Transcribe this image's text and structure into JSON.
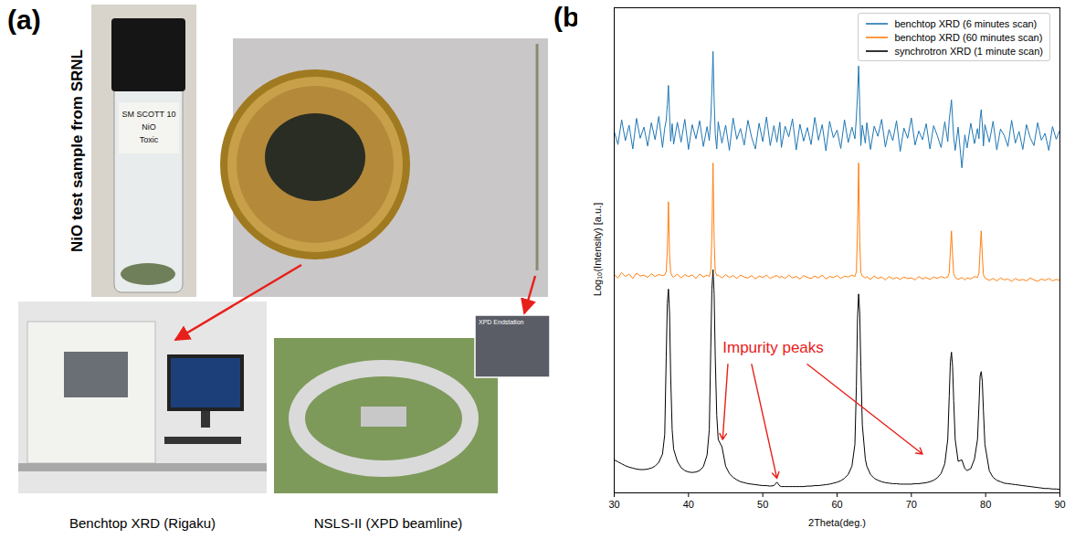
{
  "figure": {
    "panel_a": {
      "label": "(a)",
      "side_title": "NiO test sample from SRNL",
      "vial_label": [
        "SM SCOTT 10",
        "NiO",
        "Toxic"
      ],
      "photos": [
        {
          "caption": "Benchtop XRD (Rigaku)"
        },
        {
          "caption": "NSLS-II (XPD beamline)",
          "inset": "XPD Endstation"
        }
      ]
    }
  },
  "chart_data": {
    "type": "line",
    "panel_label": "(b)",
    "x_label": "2Theta(deg.)",
    "y_label": "Log₁₀(Intensity) [a.u.]",
    "xlim": [
      30,
      90
    ],
    "xticks": [
      30,
      40,
      50,
      60,
      70,
      80,
      90
    ],
    "ylim": [
      0,
      100
    ],
    "yticks": [],
    "tick_labels": "x",
    "grid": false,
    "legend": "upper right",
    "x": [
      30,
      30.5,
      31,
      31.5,
      32,
      32.5,
      33,
      33.5,
      34,
      34.5,
      35,
      35.5,
      36,
      36.5,
      36.8,
      37.0,
      37.15,
      37.3,
      37.45,
      37.6,
      37.8,
      38,
      38.5,
      39,
      39.5,
      40,
      40.5,
      41,
      41.5,
      42,
      42.5,
      42.8,
      43.0,
      43.15,
      43.3,
      43.45,
      43.6,
      43.8,
      44,
      44.5,
      45,
      45.5,
      46,
      46.5,
      47,
      47.5,
      48,
      48.5,
      49,
      49.5,
      50,
      50.5,
      51,
      51.5,
      51.9,
      52.3,
      52.5,
      53,
      53.5,
      54,
      54.5,
      55,
      55.5,
      56,
      56.5,
      57,
      57.5,
      58,
      58.5,
      59,
      59.5,
      60,
      60.5,
      61,
      61.5,
      62,
      62.4,
      62.6,
      62.75,
      62.9,
      63.05,
      63.2,
      63.4,
      63.8,
      64,
      64.5,
      65,
      65.5,
      66,
      66.5,
      67,
      67.5,
      68,
      68.5,
      69,
      69.5,
      70,
      70.5,
      71,
      71.5,
      72,
      72.5,
      73,
      73.5,
      74,
      74.5,
      74.9,
      75.1,
      75.25,
      75.4,
      75.55,
      75.7,
      75.9,
      76.3,
      76.8,
      77.2,
      77.5,
      78,
      78.5,
      78.9,
      79.1,
      79.25,
      79.4,
      79.55,
      79.7,
      79.9,
      80.5,
      81,
      81.5,
      82,
      82.5,
      83,
      83.5,
      84,
      84.5,
      85,
      85.5,
      86,
      86.5,
      87,
      87.5,
      88,
      88.5,
      89,
      89.5,
      90
    ],
    "series": [
      {
        "name": "benchtop XRD (6 minutes scan)",
        "color": "#1f77b4",
        "values": [
          74.5,
          71.8,
          76.9,
          72.6,
          75.8,
          70.9,
          77.2,
          73.1,
          75.4,
          71.5,
          76.3,
          72.8,
          77.6,
          71.2,
          75.2,
          76.8,
          80,
          84,
          78,
          72.5,
          76.1,
          71.9,
          76.4,
          72.3,
          77.0,
          70.8,
          75.9,
          73.0,
          76.7,
          71.4,
          75.5,
          72.6,
          77.2,
          83,
          91,
          81,
          74.0,
          70.9,
          76.5,
          72.1,
          75.8,
          70.6,
          77.3,
          72.9,
          75.1,
          71.7,
          76.8,
          73.3,
          70.9,
          76.2,
          72.4,
          77.5,
          71.6,
          75.7,
          72.3,
          76.4,
          71.2,
          75.6,
          73.4,
          77.1,
          70.7,
          76.0,
          72.5,
          75.3,
          71.8,
          77.4,
          72.7,
          75.9,
          70.5,
          76.6,
          73.2,
          74.8,
          71.0,
          76.9,
          72.2,
          75.4,
          73.0,
          77.5,
          82,
          88,
          80,
          71.6,
          75.8,
          72.1,
          76.3,
          70.8,
          75.6,
          73.5,
          77.0,
          71.3,
          74.9,
          72.6,
          76.7,
          70.4,
          75.2,
          73.1,
          77.3,
          71.7,
          74.6,
          72.8,
          76.1,
          70.9,
          75.7,
          73.6,
          71.2,
          76.5,
          72.4,
          76.9,
          79,
          81,
          77,
          73.3,
          70.6,
          75.4,
          67.0,
          73.8,
          71.1,
          76.2,
          72.0,
          75.1,
          73.0,
          77,
          79,
          76,
          71.5,
          75.9,
          72.3,
          76.6,
          70.7,
          75.0,
          73.7,
          71.4,
          76.8,
          72.1,
          74.5,
          70.8,
          75.9,
          73.2,
          71.6,
          76.3,
          72.7,
          74.1,
          70.6,
          75.5,
          72.9,
          74.8
        ]
      },
      {
        "name": "benchtop XRD (60 minutes scan)",
        "color": "#ff7f0e",
        "values": [
          45.0,
          44.3,
          45.4,
          44.6,
          45.1,
          44.2,
          45.3,
          44.7,
          44.9,
          44.4,
          45.2,
          44.6,
          45.0,
          44.8,
          44.9,
          45.6,
          50,
          60,
          49,
          45.4,
          44.7,
          44.5,
          45.1,
          44.3,
          45.0,
          44.6,
          44.9,
          44.2,
          45.1,
          44.5,
          44.9,
          44.6,
          45.8,
          53,
          68,
          52,
          45.6,
          44.8,
          44.9,
          44.3,
          45.0,
          44.4,
          44.8,
          44.2,
          44.9,
          44.5,
          44.3,
          44.8,
          44.1,
          44.7,
          44.4,
          44.9,
          44.2,
          44.6,
          44.8,
          44.3,
          44.7,
          44.2,
          44.9,
          44.3,
          44.6,
          44.1,
          44.8,
          44.4,
          44.2,
          44.7,
          44.3,
          44.9,
          44.1,
          44.6,
          44.4,
          44.8,
          44.2,
          44.7,
          44.5,
          44.9,
          44.6,
          45.6,
          54,
          68,
          52,
          45.4,
          44.7,
          44.3,
          44.6,
          44.0,
          44.7,
          44.2,
          44.5,
          43.9,
          44.6,
          44.1,
          44.4,
          44.0,
          44.5,
          44.2,
          44.3,
          43.9,
          44.6,
          44.1,
          44.4,
          44.0,
          44.5,
          44.2,
          44.6,
          44.3,
          44.5,
          45.4,
          50,
          54,
          49,
          45.2,
          44.4,
          44.0,
          44.4,
          43.9,
          44.3,
          44.1,
          44.6,
          44.4,
          45.3,
          50,
          54,
          49,
          45.0,
          44.3,
          43.8,
          44.2,
          43.7,
          44.3,
          43.9,
          44.1,
          43.6,
          44.2,
          43.8,
          44.0,
          43.7,
          44.3,
          43.9,
          43.6,
          44.1,
          43.8,
          44.2,
          43.7,
          44.0,
          43.8
        ]
      },
      {
        "name": "synchrotron XRD (1 minute scan)",
        "color": "#000000",
        "values": [
          6.8,
          6.4,
          6.0,
          5.6,
          5.3,
          5.1,
          4.9,
          4.8,
          4.8,
          4.9,
          5.1,
          5.5,
          6.3,
          8.0,
          12,
          28,
          39,
          42,
          37,
          24,
          13,
          9.0,
          6.5,
          5.2,
          4.6,
          4.3,
          4.2,
          4.3,
          4.6,
          5.4,
          7.8,
          13,
          30,
          42,
          46,
          41,
          28,
          16,
          11,
          9.5,
          5.5,
          4.0,
          3.2,
          2.7,
          2.3,
          2.1,
          1.9,
          1.8,
          1.7,
          1.6,
          1.5,
          1.5,
          1.4,
          1.5,
          2.2,
          1.4,
          1.3,
          1.3,
          1.3,
          1.3,
          1.3,
          1.3,
          1.3,
          1.4,
          1.4,
          1.5,
          1.5,
          1.6,
          1.7,
          1.8,
          2.0,
          2.2,
          2.5,
          3.0,
          3.8,
          5.5,
          10,
          22,
          36,
          41,
          37,
          26,
          14,
          7.0,
          5.5,
          3.8,
          3.0,
          2.6,
          2.3,
          2.1,
          2.0,
          1.9,
          1.9,
          1.8,
          1.8,
          1.8,
          1.8,
          1.9,
          1.9,
          2.0,
          2.1,
          2.3,
          2.6,
          3.1,
          4.0,
          6.0,
          11,
          20,
          27,
          29,
          26,
          19,
          11,
          6.5,
          6.8,
          5.0,
          4.6,
          5.0,
          7.0,
          11,
          18,
          24,
          25,
          23,
          17,
          10,
          4.5,
          3.2,
          2.6,
          2.3,
          2.0,
          1.9,
          1.8,
          1.7,
          1.6,
          1.5,
          1.4,
          1.3,
          1.2,
          1.1,
          1.0,
          0.9,
          0.9,
          0.8,
          0.8,
          0.7
        ]
      }
    ],
    "annotations": [
      {
        "text": "Impurity peaks",
        "x": 44.6,
        "y": 30,
        "color": "#e8201a",
        "arrows": [
          {
            "from": [
              45.3,
              26.5
            ],
            "to": [
              44.6,
              11
            ]
          },
          {
            "from": [
              48.5,
              26.5
            ],
            "to": [
              51.9,
              3
            ]
          },
          {
            "from": [
              56.0,
              26.5
            ],
            "to": [
              71.5,
              8
            ]
          }
        ]
      }
    ]
  }
}
